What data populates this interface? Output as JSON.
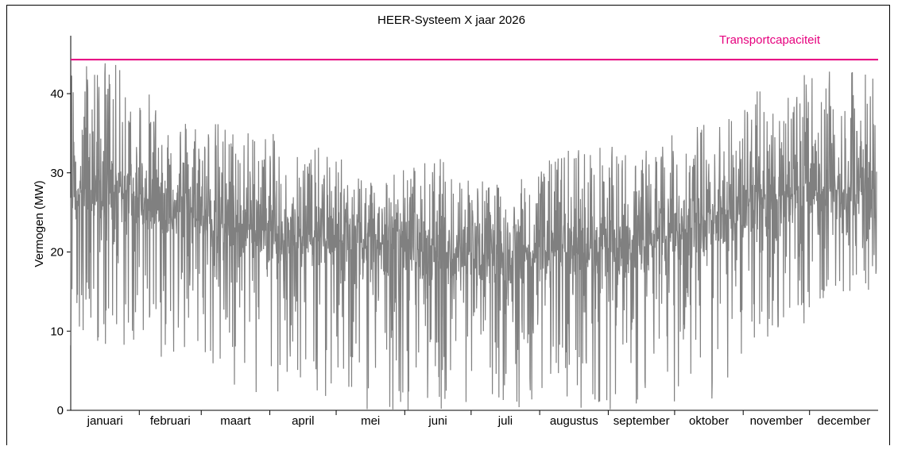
{
  "chart_data": {
    "type": "line",
    "title": "HEER-Systeem X jaar 2026",
    "xlabel": "",
    "ylabel": "Vermogen (MW)",
    "ylim": [
      0,
      48
    ],
    "yticks": [
      0,
      10,
      20,
      30,
      40
    ],
    "months": [
      "januari",
      "februari",
      "maart",
      "april",
      "mei",
      "juni",
      "juli",
      "augustus",
      "september",
      "oktober",
      "november",
      "december"
    ],
    "series": [
      {
        "type": "line",
        "color": "#808080",
        "x_unit": "month",
        "envelope": {
          "x": [
            "januari",
            "februari",
            "maart",
            "april",
            "mei",
            "juni",
            "juli",
            "augustus",
            "september",
            "oktober",
            "november",
            "december"
          ],
          "max": [
            45,
            38,
            36,
            34,
            30,
            32,
            28,
            34,
            33,
            37,
            42,
            43
          ],
          "mean": [
            28,
            26,
            23,
            22,
            21,
            20,
            20,
            20,
            21,
            24,
            27,
            28
          ],
          "min": [
            8,
            6,
            1,
            0,
            0,
            0,
            0,
            0,
            0,
            1,
            8,
            15
          ]
        }
      },
      {
        "name": "Transportcapaciteit",
        "type": "hline",
        "color": "#e6007e",
        "value": 44.3
      }
    ],
    "grid": false
  }
}
